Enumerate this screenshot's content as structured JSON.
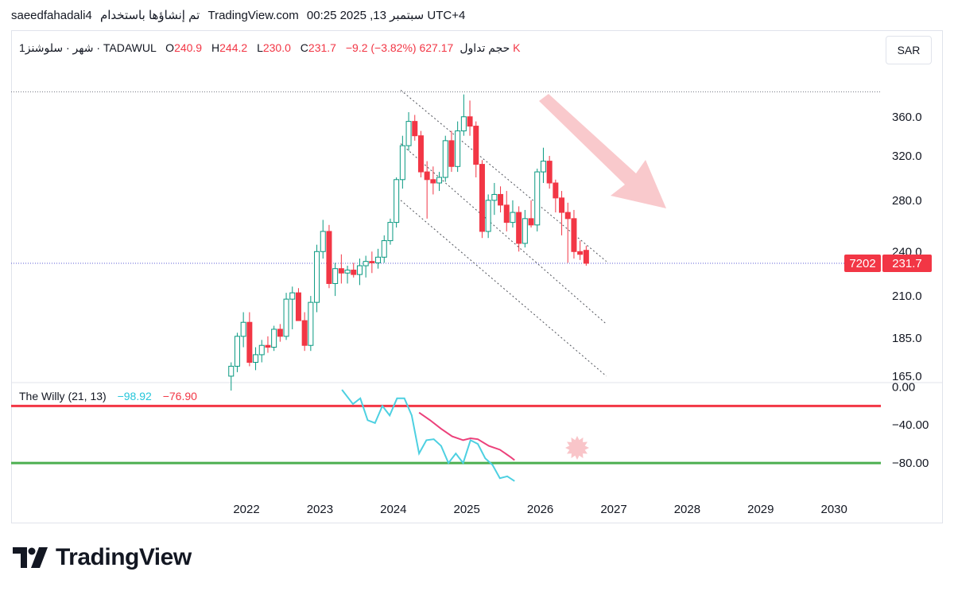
{
  "header": {
    "user": "saeedfahadali4",
    "published_with": "تم إنشاؤها باستخدام",
    "site": "TradingView.com",
    "time": "00:25 2025 ,13 سبتمبر UTC+4"
  },
  "symbol": {
    "timeframe": "1شهر",
    "name": "سلوشنز",
    "exchange": "TADAWUL",
    "o_label": "O",
    "o": "240.9",
    "h_label": "H",
    "h": "244.2",
    "l_label": "L",
    "l": "230.0",
    "c_label": "C",
    "c": "231.7",
    "change": "−9.2 (−3.82%)",
    "vol_label": "حجم تداول",
    "vol": "627.17 K"
  },
  "currency": "SAR",
  "indicator": {
    "name": "The Willy (21, 13)",
    "v1": "−98.92",
    "v2": "−76.90"
  },
  "colors": {
    "up": "#089981",
    "down": "#f23645",
    "price_tag": "#f23645",
    "willy_fast": "#4dd0e1",
    "willy_slow": "#ec407a",
    "overbought": "#f23645",
    "oversold": "#4caf50"
  },
  "chart_data": [
    {
      "type": "candlestick",
      "x_axis": {
        "ticks": [
          "2022",
          "2023",
          "2024",
          "2025",
          "2026",
          "2027",
          "2028",
          "2029",
          "2030"
        ],
        "range": [
          "2021-07",
          "2030-12"
        ]
      },
      "y_axis": {
        "scale": "log",
        "ticks": [
          "360.0",
          "320.0",
          "280.0",
          "240.0",
          "210.0",
          "185.0",
          "165.0"
        ],
        "range": [
          163,
          395
        ]
      },
      "last_price": "231.7",
      "price_tag_left": "7202",
      "candles": [
        {
          "o": 165,
          "h": 172,
          "l": 158,
          "c": 170
        },
        {
          "o": 170,
          "h": 188,
          "l": 167,
          "c": 186
        },
        {
          "o": 186,
          "h": 200,
          "l": 180,
          "c": 194
        },
        {
          "o": 194,
          "h": 200,
          "l": 170,
          "c": 172
        },
        {
          "o": 172,
          "h": 180,
          "l": 168,
          "c": 176
        },
        {
          "o": 176,
          "h": 184,
          "l": 172,
          "c": 181
        },
        {
          "o": 181,
          "h": 186,
          "l": 177,
          "c": 180
        },
        {
          "o": 180,
          "h": 192,
          "l": 178,
          "c": 190
        },
        {
          "o": 190,
          "h": 193,
          "l": 183,
          "c": 186
        },
        {
          "o": 186,
          "h": 212,
          "l": 184,
          "c": 208
        },
        {
          "o": 208,
          "h": 216,
          "l": 190,
          "c": 212
        },
        {
          "o": 212,
          "h": 215,
          "l": 195,
          "c": 195
        },
        {
          "o": 195,
          "h": 200,
          "l": 178,
          "c": 181
        },
        {
          "o": 181,
          "h": 210,
          "l": 178,
          "c": 206
        },
        {
          "o": 206,
          "h": 245,
          "l": 200,
          "c": 240
        },
        {
          "o": 240,
          "h": 264,
          "l": 235,
          "c": 255
        },
        {
          "o": 255,
          "h": 260,
          "l": 215,
          "c": 218
        },
        {
          "o": 218,
          "h": 232,
          "l": 210,
          "c": 228
        },
        {
          "o": 228,
          "h": 238,
          "l": 218,
          "c": 225
        },
        {
          "o": 225,
          "h": 230,
          "l": 218,
          "c": 227
        },
        {
          "o": 227,
          "h": 232,
          "l": 222,
          "c": 224
        },
        {
          "o": 224,
          "h": 235,
          "l": 217,
          "c": 230
        },
        {
          "o": 230,
          "h": 237,
          "l": 222,
          "c": 233
        },
        {
          "o": 233,
          "h": 240,
          "l": 225,
          "c": 232
        },
        {
          "o": 232,
          "h": 242,
          "l": 228,
          "c": 236
        },
        {
          "o": 236,
          "h": 252,
          "l": 232,
          "c": 248
        },
        {
          "o": 248,
          "h": 265,
          "l": 245,
          "c": 262
        },
        {
          "o": 262,
          "h": 300,
          "l": 258,
          "c": 298
        },
        {
          "o": 298,
          "h": 340,
          "l": 290,
          "c": 330
        },
        {
          "o": 330,
          "h": 365,
          "l": 325,
          "c": 355
        },
        {
          "o": 355,
          "h": 362,
          "l": 335,
          "c": 340
        },
        {
          "o": 340,
          "h": 345,
          "l": 300,
          "c": 305
        },
        {
          "o": 305,
          "h": 315,
          "l": 265,
          "c": 298
        },
        {
          "o": 298,
          "h": 310,
          "l": 285,
          "c": 295
        },
        {
          "o": 295,
          "h": 305,
          "l": 288,
          "c": 300
        },
        {
          "o": 300,
          "h": 340,
          "l": 296,
          "c": 335
        },
        {
          "o": 335,
          "h": 345,
          "l": 305,
          "c": 310
        },
        {
          "o": 310,
          "h": 355,
          "l": 305,
          "c": 345
        },
        {
          "o": 345,
          "h": 385,
          "l": 340,
          "c": 360
        },
        {
          "o": 360,
          "h": 378,
          "l": 340,
          "c": 350
        },
        {
          "o": 350,
          "h": 355,
          "l": 300,
          "c": 312
        },
        {
          "o": 312,
          "h": 316,
          "l": 250,
          "c": 255
        },
        {
          "o": 255,
          "h": 285,
          "l": 250,
          "c": 280
        },
        {
          "o": 280,
          "h": 295,
          "l": 268,
          "c": 285
        },
        {
          "o": 285,
          "h": 292,
          "l": 270,
          "c": 276
        },
        {
          "o": 276,
          "h": 288,
          "l": 255,
          "c": 262
        },
        {
          "o": 262,
          "h": 280,
          "l": 258,
          "c": 270
        },
        {
          "o": 270,
          "h": 275,
          "l": 240,
          "c": 246
        },
        {
          "o": 246,
          "h": 272,
          "l": 243,
          "c": 265
        },
        {
          "o": 265,
          "h": 280,
          "l": 258,
          "c": 260
        },
        {
          "o": 260,
          "h": 308,
          "l": 255,
          "c": 305
        },
        {
          "o": 305,
          "h": 328,
          "l": 295,
          "c": 315
        },
        {
          "o": 315,
          "h": 320,
          "l": 290,
          "c": 295
        },
        {
          "o": 295,
          "h": 298,
          "l": 270,
          "c": 282
        },
        {
          "o": 282,
          "h": 288,
          "l": 252,
          "c": 270
        },
        {
          "o": 270,
          "h": 278,
          "l": 232,
          "c": 265
        },
        {
          "o": 265,
          "h": 272,
          "l": 235,
          "c": 240
        },
        {
          "o": 240,
          "h": 248,
          "l": 234,
          "c": 238
        },
        {
          "o": 240.9,
          "h": 244.2,
          "l": 230.0,
          "c": 231.7
        }
      ],
      "channel_lines": [
        {
          "from": {
            "t": 2024.1,
            "p": 390
          },
          "to": {
            "t": 2026.9,
            "p": 233
          }
        },
        {
          "from": {
            "t": 2024.1,
            "p": 332
          },
          "to": {
            "t": 2026.9,
            "p": 193
          }
        },
        {
          "from": {
            "t": 2024.1,
            "p": 280
          },
          "to": {
            "t": 2026.9,
            "p": 165
          }
        }
      ],
      "high_line": 388
    },
    {
      "type": "line",
      "name": "The Willy (21, 13)",
      "y_axis": {
        "ticks": [
          "0.00",
          "−40.00",
          "−80.00"
        ],
        "range": [
          -105,
          2
        ]
      },
      "levels": [
        -20,
        -80
      ],
      "series": [
        {
          "name": "fast",
          "color": "#4dd0e1",
          "t": [
            2023.3,
            2023.45,
            2023.55,
            2023.65,
            2023.75,
            2023.85,
            2023.95,
            2024.05,
            2024.15,
            2024.25,
            2024.35,
            2024.45,
            2024.55,
            2024.65,
            2024.75,
            2024.85,
            2024.95,
            2025.05,
            2025.15,
            2025.25,
            2025.35,
            2025.45,
            2025.55,
            2025.65
          ],
          "values": [
            -3,
            -18,
            -12,
            -35,
            -38,
            -20,
            -30,
            -12,
            -12,
            -30,
            -70,
            -56,
            -55,
            -62,
            -80,
            -70,
            -80,
            -56,
            -60,
            -75,
            -82,
            -96,
            -94,
            -99
          ]
        },
        {
          "name": "slow",
          "color": "#ec407a",
          "t": [
            2024.35,
            2024.5,
            2024.65,
            2024.8,
            2024.95,
            2025.05,
            2025.15,
            2025.3,
            2025.45,
            2025.6,
            2025.65
          ],
          "values": [
            -27,
            -35,
            -44,
            -52,
            -56,
            -54,
            -55,
            -62,
            -66,
            -74,
            -77
          ]
        }
      ]
    }
  ]
}
